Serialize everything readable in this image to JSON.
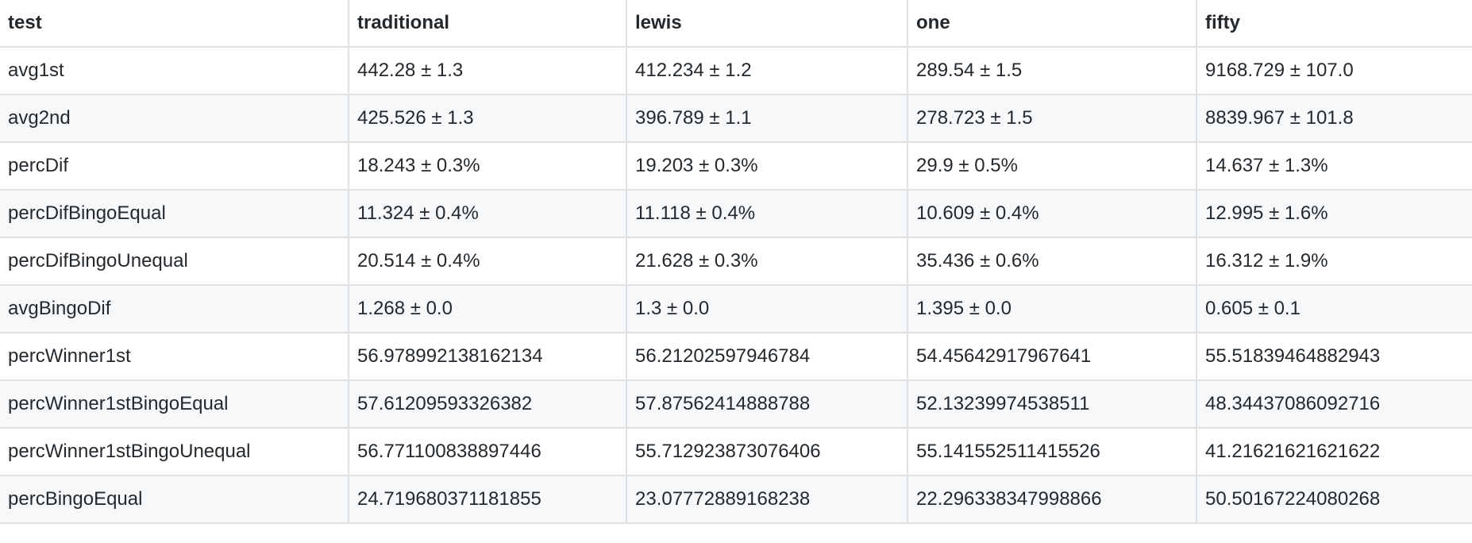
{
  "table": {
    "headers": [
      "test",
      "traditional",
      "lewis",
      "one",
      "fifty"
    ],
    "rows": [
      [
        "avg1st",
        "442.28 ± 1.3",
        "412.234 ± 1.2",
        "289.54 ± 1.5",
        "9168.729 ± 107.0"
      ],
      [
        "avg2nd",
        "425.526 ± 1.3",
        "396.789 ± 1.1",
        "278.723 ± 1.5",
        "8839.967 ± 101.8"
      ],
      [
        "percDif",
        "18.243 ± 0.3%",
        "19.203 ± 0.3%",
        "29.9 ± 0.5%",
        "14.637 ± 1.3%"
      ],
      [
        "percDifBingoEqual",
        "11.324 ± 0.4%",
        "11.118 ± 0.4%",
        "10.609 ± 0.4%",
        "12.995 ± 1.6%"
      ],
      [
        "percDifBingoUnequal",
        "20.514 ± 0.4%",
        "21.628 ± 0.3%",
        "35.436 ± 0.6%",
        "16.312 ± 1.9%"
      ],
      [
        "avgBingoDif",
        "1.268 ± 0.0",
        "1.3 ± 0.0",
        "1.395 ± 0.0",
        "0.605 ± 0.1"
      ],
      [
        "percWinner1st",
        "56.978992138162134",
        "56.21202597946784",
        "54.45642917967641",
        "55.51839464882943"
      ],
      [
        "percWinner1stBingoEqual",
        "57.61209593326382",
        "57.87562414888788",
        "52.13239974538511",
        "48.34437086092716"
      ],
      [
        "percWinner1stBingoUnequal",
        "56.771100838897446",
        "55.712923873076406",
        "55.141552511415526",
        "41.21621621621622"
      ],
      [
        "percBingoEqual",
        "24.71968037118185​5",
        "23.07772889168238",
        "22.296338347998866",
        "50.50167224080268"
      ]
    ]
  }
}
